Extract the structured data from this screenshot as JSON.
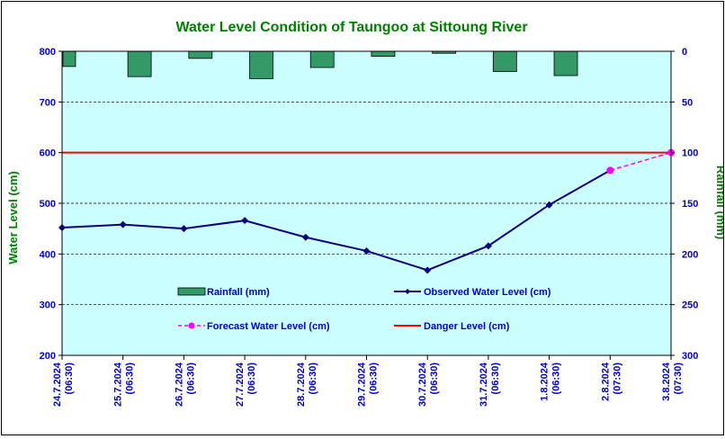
{
  "chart_data": {
    "type": "bar+line",
    "title": "Water Level Condition of Taungoo at  Sittoung River",
    "ylabel": "Water Level (cm)",
    "y2label": "Rainfall (mm)",
    "ylim": [
      200,
      800
    ],
    "yticks": [
      200,
      300,
      400,
      500,
      600,
      700,
      800
    ],
    "y2lim": [
      0,
      300
    ],
    "y2ticks": [
      0,
      50,
      100,
      150,
      200,
      250,
      300
    ],
    "y2_inverted": true,
    "grid": true,
    "categories": [
      [
        "24.7.2024",
        "(06:30)"
      ],
      [
        "25.7.2024",
        "(06:30)"
      ],
      [
        "26.7.2024",
        "(06:30)"
      ],
      [
        "27.7.2024",
        "(06:30)"
      ],
      [
        "28.7.2024",
        "(06:30)"
      ],
      [
        "29.7.2024",
        "(06:30)"
      ],
      [
        "30.7.2024",
        "(06:30)"
      ],
      [
        "31.7.2024",
        "(06:30)"
      ],
      [
        "1.8.2024",
        "(06:30)"
      ],
      [
        "2.8.2024",
        "(07:30)"
      ],
      [
        "3.8.2024",
        "(07:30)"
      ]
    ],
    "legend": {
      "rainfall": "Rainfall (mm)",
      "observed": "Observed Water Level (cm)",
      "forecast": "Forecast Water Level (cm)",
      "danger": "Danger Level (cm)"
    },
    "series": {
      "rainfall": [
        15,
        25,
        7,
        27,
        16,
        5,
        2,
        20,
        24
      ],
      "observed": [
        452,
        458,
        450,
        466,
        433,
        406,
        368,
        416,
        497,
        565
      ],
      "forecast": [
        565,
        600
      ],
      "danger": 600
    },
    "colors": {
      "plot_bg": "#ccffff",
      "rainfall": "#339966",
      "observed": "#000080",
      "forecast": "#ff00ff",
      "danger": "#ff0000",
      "title": "#008000",
      "axis_text": "#0000cc"
    }
  }
}
